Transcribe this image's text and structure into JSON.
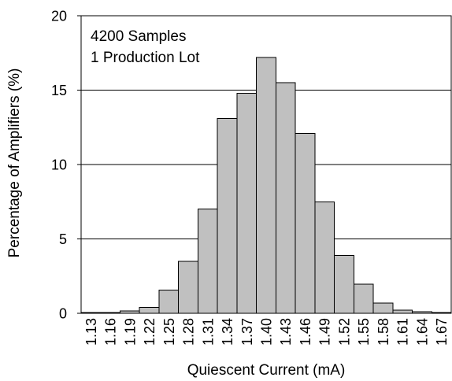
{
  "chart_data": {
    "type": "bar",
    "categories": [
      "1.13",
      "1.16",
      "1.19",
      "1.22",
      "1.25",
      "1.28",
      "1.31",
      "1.34",
      "1.37",
      "1.40",
      "1.43",
      "1.46",
      "1.49",
      "1.52",
      "1.55",
      "1.58",
      "1.61",
      "1.64",
      "1.67"
    ],
    "values": [
      0.05,
      0.05,
      0.15,
      0.4,
      1.55,
      3.5,
      7.0,
      13.1,
      14.8,
      17.2,
      15.5,
      12.1,
      7.5,
      3.9,
      1.95,
      0.7,
      0.2,
      0.1,
      0.05
    ],
    "xlabel": "Quiescent Current (mA)",
    "ylabel": "Percentage of Amplifiers (%)",
    "ylim": [
      0,
      20
    ],
    "yticks": [
      0,
      5,
      10,
      15,
      20
    ],
    "grid": true,
    "annotations": [
      "4200 Samples",
      "1 Production Lot"
    ],
    "bar_color": "#c0c0c0",
    "edge_color": "#000000"
  }
}
